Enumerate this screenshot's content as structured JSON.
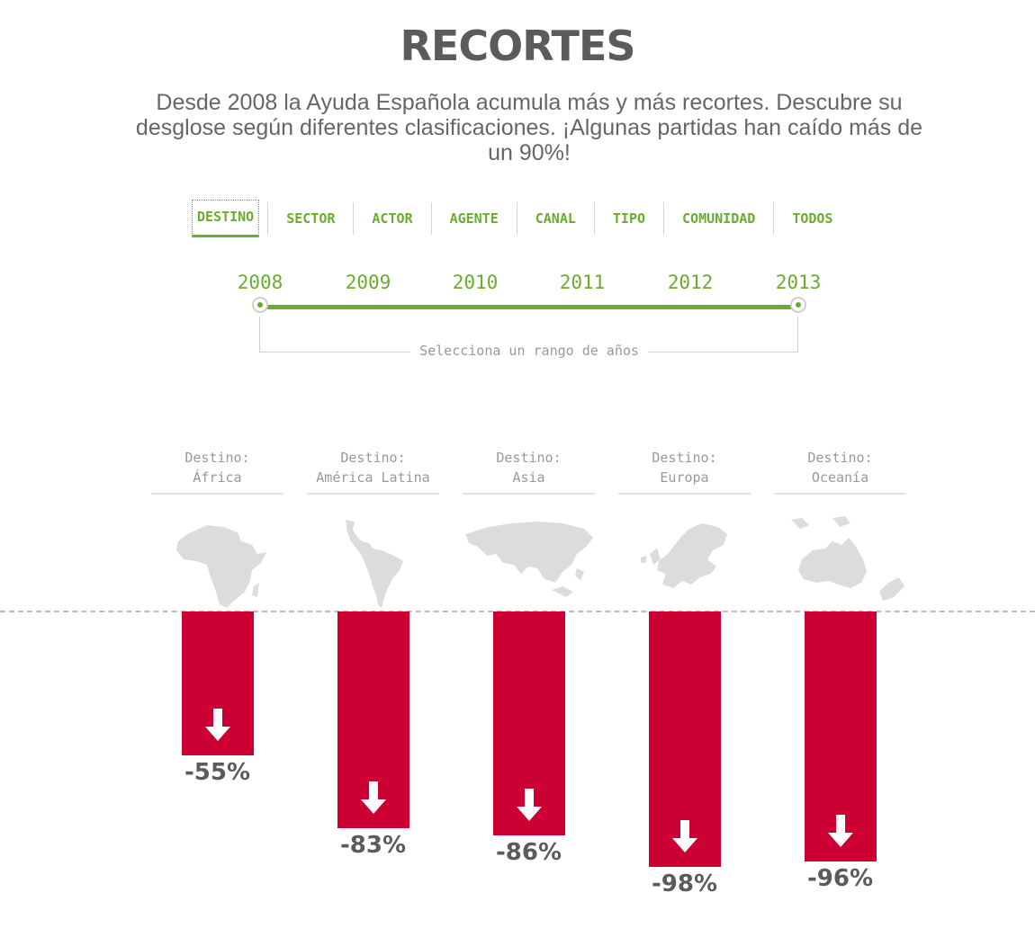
{
  "title": "RECORTES",
  "intro": "Desde 2008 la Ayuda Española acumula más y más recortes. Descubre su desglose según diferentes clasificaciones. ¡Algunas partidas han caído más de un 90%!",
  "tabs": [
    "DESTINO",
    "SECTOR",
    "ACTOR",
    "AGENTE",
    "CANAL",
    "TIPO",
    "COMUNIDAD",
    "TODOS"
  ],
  "active_tab": "DESTINO",
  "years": [
    "2008",
    "2009",
    "2010",
    "2011",
    "2012",
    "2013"
  ],
  "range": {
    "from": "2008",
    "to": "2013",
    "label": "Selecciona un rango de años"
  },
  "colors": {
    "accent": "#6aac2e",
    "bar": "#cc0033",
    "text": "#5b5b5b",
    "muted": "#999999",
    "map": "#dcdcdc"
  },
  "columns": [
    {
      "heading": "Destino:",
      "region": "África",
      "value": -55,
      "label": "-55%",
      "icon": "africa-map-icon"
    },
    {
      "heading": "Destino:",
      "region": "América Latina",
      "value": -83,
      "label": "-83%",
      "icon": "latin-america-map-icon"
    },
    {
      "heading": "Destino:",
      "region": "Asia",
      "value": -86,
      "label": "-86%",
      "icon": "asia-map-icon"
    },
    {
      "heading": "Destino:",
      "region": "Europa",
      "value": -98,
      "label": "-98%",
      "icon": "europe-map-icon"
    },
    {
      "heading": "Destino:",
      "region": "Oceanía",
      "value": -96,
      "label": "-96%",
      "icon": "oceania-map-icon"
    }
  ]
}
